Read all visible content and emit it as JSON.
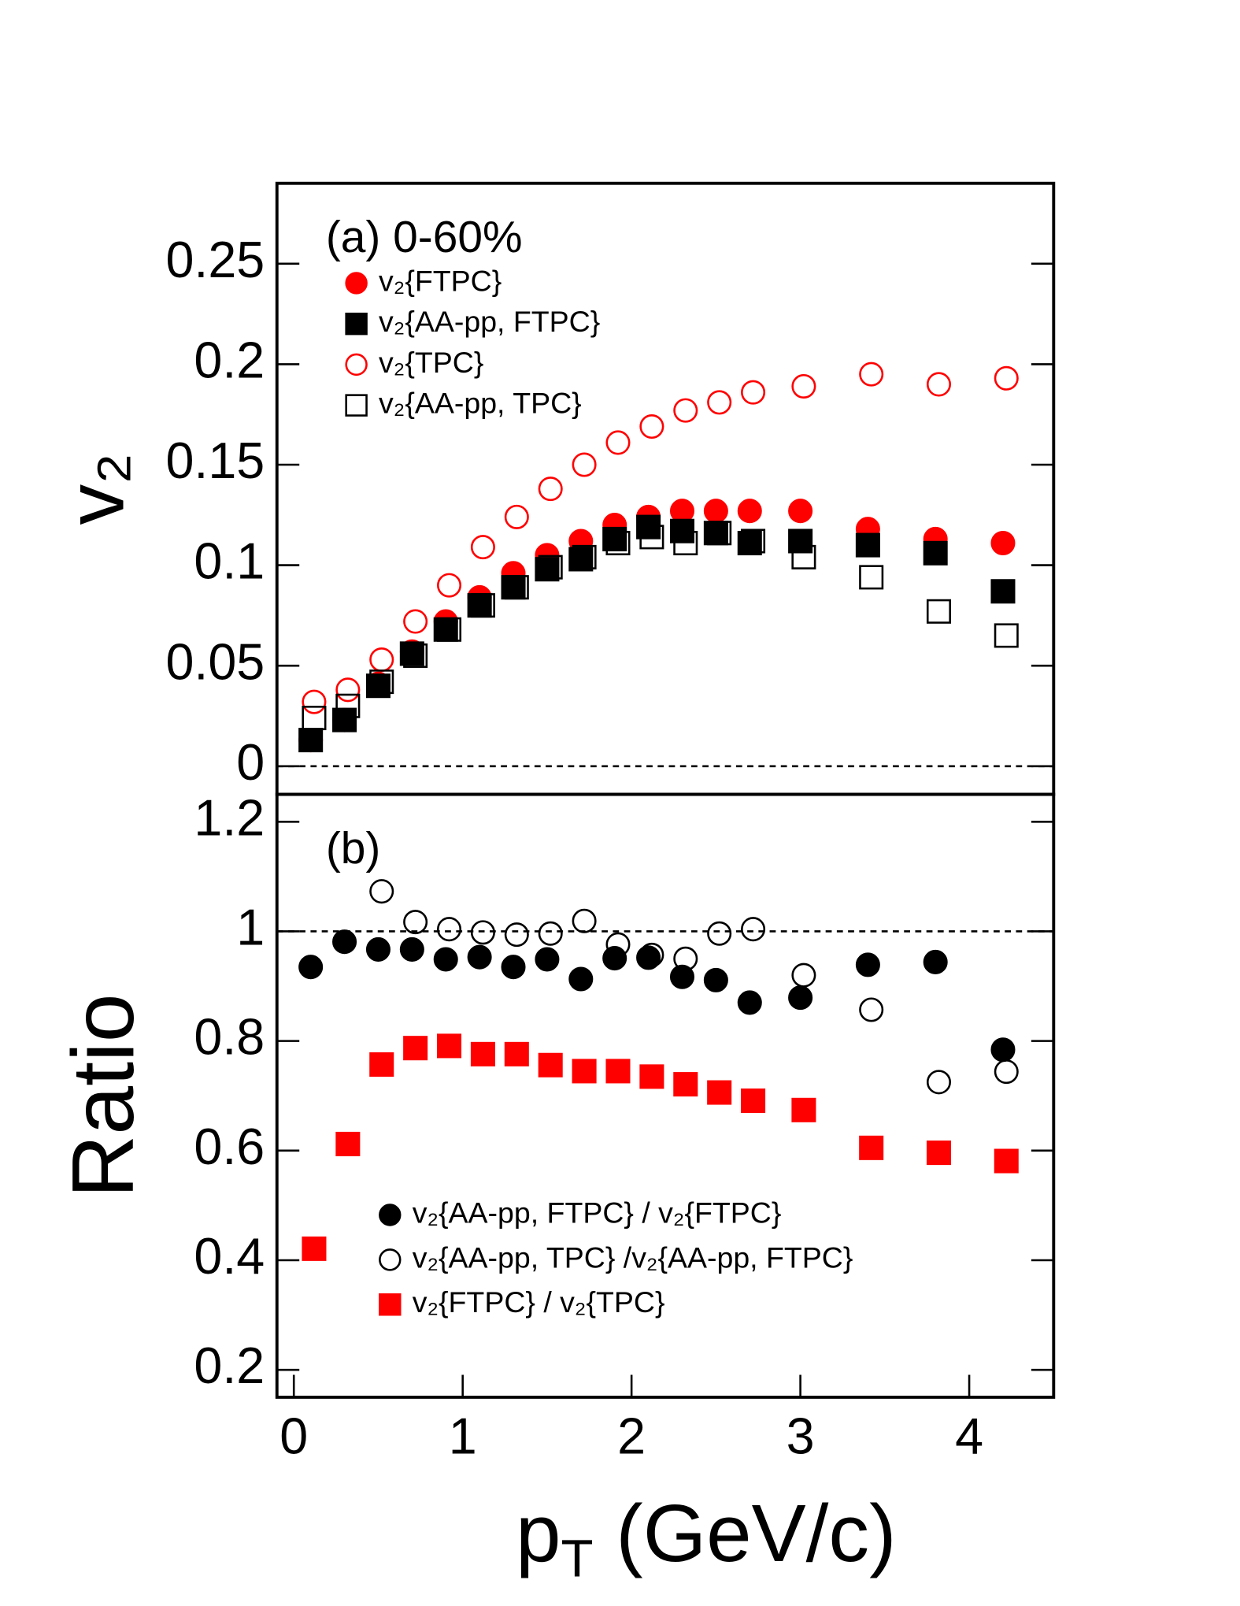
{
  "chart_data": [
    {
      "type": "scatter",
      "annotation": "(a) 0-60%",
      "ylabel": "v₂",
      "xlim": [
        -0.1,
        4.5
      ],
      "ylim": [
        -0.014,
        0.29
      ],
      "yticks": [
        0,
        0.05,
        0.1,
        0.15,
        0.2,
        0.25
      ],
      "reference_line": 0,
      "legend": "upper left",
      "series": [
        {
          "name": "v₂{FTPC}",
          "color": "#ff0000",
          "marker": "circle",
          "filled": true,
          "x": [
            0.1,
            0.3,
            0.5,
            0.7,
            0.9,
            1.1,
            1.3,
            1.5,
            1.7,
            1.9,
            2.1,
            2.3,
            2.5,
            2.7,
            3.0,
            3.4,
            3.8,
            4.2
          ],
          "values": [
            0.013,
            0.023,
            0.041,
            0.057,
            0.072,
            0.084,
            0.096,
            0.105,
            0.112,
            0.12,
            0.124,
            0.127,
            0.127,
            0.127,
            0.127,
            0.118,
            0.113,
            0.111
          ]
        },
        {
          "name": "v₂{AA-pp, FTPC}",
          "color": "#000000",
          "marker": "square",
          "filled": true,
          "x": [
            0.1,
            0.3,
            0.5,
            0.7,
            0.9,
            1.1,
            1.3,
            1.5,
            1.7,
            1.9,
            2.1,
            2.3,
            2.5,
            2.7,
            3.0,
            3.4,
            3.8,
            4.2
          ],
          "values": [
            0.013,
            0.023,
            0.04,
            0.056,
            0.068,
            0.08,
            0.089,
            0.098,
            0.103,
            0.113,
            0.119,
            0.117,
            0.116,
            0.111,
            0.112,
            0.11,
            0.106,
            0.087
          ]
        },
        {
          "name": "v₂{TPC}",
          "color": "#ff0000",
          "marker": "circle",
          "filled": false,
          "x": [
            0.12,
            0.32,
            0.52,
            0.72,
            0.92,
            1.12,
            1.32,
            1.52,
            1.72,
            1.92,
            2.12,
            2.32,
            2.52,
            2.72,
            3.02,
            3.42,
            3.82,
            4.22
          ],
          "values": [
            0.032,
            0.038,
            0.053,
            0.072,
            0.09,
            0.109,
            0.124,
            0.138,
            0.15,
            0.161,
            0.169,
            0.177,
            0.181,
            0.186,
            0.189,
            0.195,
            0.19,
            0.193
          ]
        },
        {
          "name": "v₂{AA-pp, TPC}",
          "color": "#000000",
          "marker": "square",
          "filled": false,
          "x": [
            0.12,
            0.32,
            0.52,
            0.72,
            0.92,
            1.12,
            1.32,
            1.52,
            1.72,
            1.92,
            2.12,
            2.32,
            2.52,
            2.72,
            3.02,
            3.42,
            3.82,
            4.22
          ],
          "values": [
            0.024,
            0.03,
            0.042,
            0.055,
            0.068,
            0.08,
            0.089,
            0.099,
            0.104,
            0.111,
            0.114,
            0.111,
            0.116,
            0.112,
            0.104,
            0.094,
            0.077,
            0.065
          ]
        }
      ]
    },
    {
      "type": "scatter",
      "annotation": "(b)",
      "ylabel": "Ratio",
      "xlabel": "pT (GeV/c)",
      "xlim": [
        -0.1,
        4.5
      ],
      "xticks": [
        0,
        1,
        2,
        3,
        4
      ],
      "ylim": [
        0.15,
        1.25
      ],
      "yticks": [
        0.2,
        0.4,
        0.6,
        0.8,
        1,
        1.2
      ],
      "reference_line": 1,
      "legend": "lower center",
      "series": [
        {
          "name": "v₂{AA-pp, FTPC} / v₂{FTPC}",
          "color": "#000000",
          "marker": "circle",
          "filled": true,
          "x": [
            0.1,
            0.3,
            0.5,
            0.7,
            0.9,
            1.1,
            1.3,
            1.5,
            1.7,
            1.9,
            2.1,
            2.3,
            2.5,
            2.7,
            3.0,
            3.4,
            3.8,
            4.2
          ],
          "values": [
            0.935,
            0.981,
            0.967,
            0.967,
            0.949,
            0.953,
            0.935,
            0.949,
            0.913,
            0.951,
            0.952,
            0.917,
            0.911,
            0.87,
            0.879,
            0.939,
            0.944,
            0.784
          ]
        },
        {
          "name": "v₂{AA-pp, TPC} /v₂{AA-pp, FTPC}",
          "color": "#000000",
          "marker": "circle",
          "filled": false,
          "x": [
            0.52,
            0.72,
            0.92,
            1.12,
            1.32,
            1.52,
            1.72,
            1.92,
            2.12,
            2.32,
            2.52,
            2.72,
            3.02,
            3.42,
            3.82,
            4.22
          ],
          "values": [
            1.073,
            1.017,
            1.004,
            0.998,
            0.994,
            0.996,
            1.019,
            0.976,
            0.957,
            0.95,
            0.996,
            1.004,
            0.92,
            0.857,
            0.725,
            0.744
          ]
        },
        {
          "name": "v₂{FTPC} / v₂{TPC}",
          "color": "#ff0000",
          "marker": "square",
          "filled": true,
          "x": [
            0.12,
            0.32,
            0.52,
            0.72,
            0.92,
            1.12,
            1.32,
            1.52,
            1.72,
            1.92,
            2.12,
            2.32,
            2.52,
            2.72,
            3.02,
            3.42,
            3.82,
            4.22
          ],
          "values": [
            0.421,
            0.612,
            0.757,
            0.787,
            0.791,
            0.776,
            0.776,
            0.756,
            0.745,
            0.745,
            0.735,
            0.721,
            0.706,
            0.691,
            0.674,
            0.605,
            0.596,
            0.581
          ]
        }
      ]
    }
  ]
}
